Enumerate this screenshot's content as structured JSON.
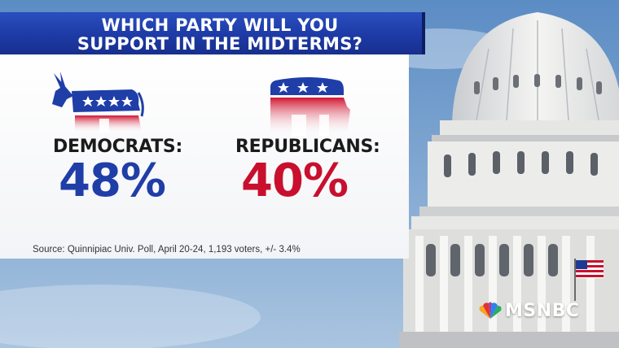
{
  "headline": {
    "line1": "WHICH PARTY WILL YOU",
    "line2": "SUPPORT IN THE MIDTERMS?"
  },
  "parties": [
    {
      "name": "DEMOCRATS:",
      "percent": "48%",
      "color": "#1f3ea8",
      "icon": "donkey-icon"
    },
    {
      "name": "REPUBLICANS:",
      "percent": "40%",
      "color": "#c8102e",
      "icon": "elephant-icon"
    }
  ],
  "source": "Source: Quinnipiac Univ. Poll, April 20-24, 1,193 voters, +/- 3.4%",
  "network": {
    "name": "MSNBC",
    "icon": "peacock-icon"
  },
  "colors": {
    "title_bar": "#1d3aa5",
    "democrat": "#1f3ea8",
    "republican": "#c8102e"
  }
}
